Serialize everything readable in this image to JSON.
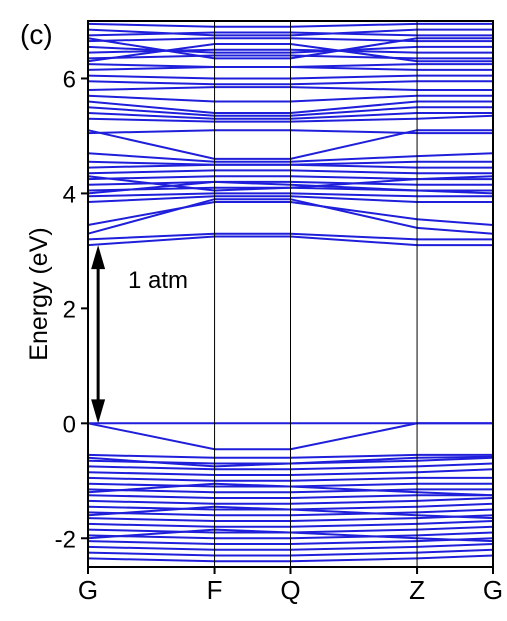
{
  "panel_label": "(c)",
  "chart_data": {
    "type": "line",
    "title": "",
    "xlabel": "",
    "ylabel": "Energy (eV)",
    "ylim": [
      -2.5,
      7.0
    ],
    "yticks": [
      -2,
      0,
      2,
      4,
      6
    ],
    "k_points": [
      {
        "label": "G",
        "position": 0.0
      },
      {
        "label": "F",
        "position": 1.0
      },
      {
        "label": "Q",
        "position": 1.6
      },
      {
        "label": "Z",
        "position": 2.6
      },
      {
        "label": "G",
        "position": 3.2
      }
    ],
    "annotation": {
      "text": "1 atm",
      "gap_from": 0.0,
      "gap_to": 3.1,
      "x": 0.08
    },
    "line_color": "#1f1fdb",
    "grid": false,
    "series": [
      {
        "values": [
          0.0,
          0.0,
          0.0,
          0.0,
          0.0
        ]
      },
      {
        "values": [
          0.0,
          -0.45,
          -0.45,
          0.0,
          0.0
        ]
      },
      {
        "values": [
          -0.55,
          -0.6,
          -0.6,
          -0.55,
          -0.55
        ]
      },
      {
        "values": [
          -0.65,
          -0.7,
          -0.7,
          -0.65,
          -0.6
        ]
      },
      {
        "values": [
          -0.75,
          -0.8,
          -0.8,
          -0.75,
          -0.7
        ]
      },
      {
        "values": [
          -0.85,
          -0.9,
          -0.9,
          -0.85,
          -0.8
        ]
      },
      {
        "values": [
          -0.95,
          -1.0,
          -1.0,
          -0.95,
          -0.95
        ]
      },
      {
        "values": [
          -1.05,
          -1.1,
          -1.1,
          -1.05,
          -1.05
        ]
      },
      {
        "values": [
          -1.15,
          -1.2,
          -1.2,
          -1.15,
          -1.15
        ]
      },
      {
        "values": [
          -1.25,
          -1.3,
          -1.3,
          -1.25,
          -1.25
        ]
      },
      {
        "values": [
          -1.35,
          -1.4,
          -1.4,
          -1.35,
          -1.3
        ]
      },
      {
        "values": [
          -1.45,
          -1.5,
          -1.5,
          -1.45,
          -1.4
        ]
      },
      {
        "values": [
          -1.55,
          -1.6,
          -1.6,
          -1.55,
          -1.5
        ]
      },
      {
        "values": [
          -1.65,
          -1.7,
          -1.7,
          -1.65,
          -1.6
        ]
      },
      {
        "values": [
          -1.75,
          -1.8,
          -1.8,
          -1.75,
          -1.7
        ]
      },
      {
        "values": [
          -1.85,
          -1.9,
          -1.9,
          -1.85,
          -1.8
        ]
      },
      {
        "values": [
          -1.95,
          -2.0,
          -2.0,
          -1.95,
          -1.9
        ]
      },
      {
        "values": [
          -2.05,
          -2.1,
          -2.1,
          -2.05,
          -2.0
        ]
      },
      {
        "values": [
          -2.15,
          -2.2,
          -2.2,
          -2.15,
          -2.1
        ]
      },
      {
        "values": [
          -2.25,
          -2.3,
          -2.3,
          -2.25,
          -2.2
        ]
      },
      {
        "values": [
          -2.35,
          -2.4,
          -2.4,
          -2.35,
          -2.3
        ]
      },
      {
        "values": [
          -0.6,
          -0.75,
          -0.7,
          -0.6,
          -0.58
        ]
      },
      {
        "values": [
          -1.2,
          -1.05,
          -1.1,
          -1.2,
          -1.25
        ]
      },
      {
        "values": [
          -1.6,
          -1.45,
          -1.5,
          -1.6,
          -1.65
        ]
      },
      {
        "values": [
          -2.0,
          -1.85,
          -1.9,
          -2.0,
          -2.05
        ]
      },
      {
        "values": [
          3.1,
          3.25,
          3.25,
          3.1,
          3.1
        ]
      },
      {
        "values": [
          3.2,
          3.3,
          3.3,
          3.2,
          3.2
        ]
      },
      {
        "values": [
          3.3,
          3.9,
          3.9,
          3.4,
          3.3
        ]
      },
      {
        "values": [
          3.45,
          3.85,
          3.85,
          3.55,
          3.45
        ]
      },
      {
        "values": [
          3.85,
          3.95,
          3.95,
          3.85,
          3.85
        ]
      },
      {
        "values": [
          3.95,
          4.0,
          4.0,
          3.95,
          3.95
        ]
      },
      {
        "values": [
          4.05,
          4.1,
          4.1,
          4.05,
          4.05
        ]
      },
      {
        "values": [
          4.15,
          4.2,
          4.2,
          4.15,
          4.15
        ]
      },
      {
        "values": [
          4.25,
          4.3,
          4.3,
          4.25,
          4.25
        ]
      },
      {
        "values": [
          4.35,
          4.4,
          4.4,
          4.35,
          4.35
        ]
      },
      {
        "values": [
          4.45,
          4.5,
          4.5,
          4.45,
          4.45
        ]
      },
      {
        "values": [
          4.55,
          4.5,
          4.5,
          4.55,
          4.55
        ]
      },
      {
        "values": [
          4.7,
          4.55,
          4.55,
          4.65,
          4.7
        ]
      },
      {
        "values": [
          4.0,
          4.2,
          4.15,
          4.05,
          4.0
        ]
      },
      {
        "values": [
          4.3,
          4.05,
          4.1,
          4.25,
          4.3
        ]
      },
      {
        "values": [
          5.05,
          5.1,
          5.1,
          5.05,
          5.05
        ]
      },
      {
        "values": [
          5.1,
          4.6,
          4.6,
          5.1,
          5.1
        ]
      },
      {
        "values": [
          5.3,
          5.25,
          5.25,
          5.3,
          5.35
        ]
      },
      {
        "values": [
          5.4,
          5.3,
          5.3,
          5.4,
          5.4
        ]
      },
      {
        "values": [
          5.5,
          5.35,
          5.35,
          5.5,
          5.5
        ]
      },
      {
        "values": [
          5.6,
          5.4,
          5.4,
          5.6,
          5.6
        ]
      },
      {
        "values": [
          5.7,
          5.6,
          5.6,
          5.7,
          5.7
        ]
      },
      {
        "values": [
          5.8,
          5.85,
          5.85,
          5.8,
          5.8
        ]
      },
      {
        "values": [
          5.95,
          5.9,
          5.9,
          5.95,
          5.95
        ]
      },
      {
        "values": [
          6.05,
          6.0,
          6.0,
          6.05,
          6.05
        ]
      },
      {
        "values": [
          6.15,
          6.2,
          6.2,
          6.15,
          6.15
        ]
      },
      {
        "values": [
          6.25,
          6.2,
          6.2,
          6.25,
          6.25
        ]
      },
      {
        "values": [
          6.35,
          6.4,
          6.4,
          6.35,
          6.35
        ]
      },
      {
        "values": [
          6.45,
          6.5,
          6.5,
          6.45,
          6.45
        ]
      },
      {
        "values": [
          6.55,
          6.45,
          6.45,
          6.55,
          6.55
        ]
      },
      {
        "values": [
          6.65,
          6.7,
          6.7,
          6.65,
          6.65
        ]
      },
      {
        "values": [
          6.75,
          6.8,
          6.8,
          6.75,
          6.75
        ]
      },
      {
        "values": [
          6.85,
          6.75,
          6.75,
          6.85,
          6.85
        ]
      },
      {
        "values": [
          6.95,
          6.9,
          6.9,
          6.95,
          6.95
        ]
      },
      {
        "values": [
          6.3,
          6.6,
          6.6,
          6.3,
          6.3
        ]
      },
      {
        "values": [
          6.7,
          6.35,
          6.35,
          6.7,
          6.7
        ]
      }
    ]
  }
}
